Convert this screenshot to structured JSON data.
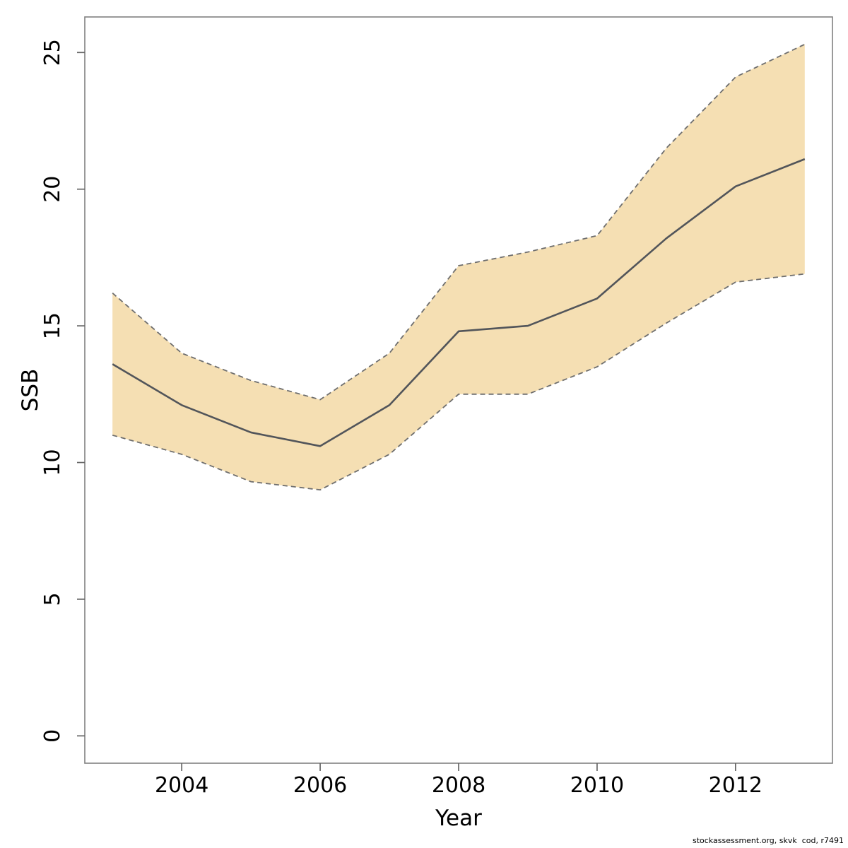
{
  "figure": {
    "background": "#ffffff",
    "footer_credit": "stockassessment.org, skvk  cod, r7491"
  },
  "chart_data": {
    "type": "area",
    "title": "",
    "xlabel": "Year",
    "ylabel": "SSB",
    "x": [
      2003,
      2004,
      2005,
      2006,
      2007,
      2008,
      2009,
      2010,
      2011,
      2012,
      2013
    ],
    "series": [
      {
        "name": "SSB estimate",
        "role": "mid",
        "values": [
          13.6,
          12.1,
          11.1,
          10.6,
          12.1,
          14.8,
          15.0,
          16.0,
          18.2,
          20.1,
          21.1
        ]
      },
      {
        "name": "upper 95% confidence bound",
        "role": "upper",
        "values": [
          16.2,
          14.0,
          13.0,
          12.3,
          14.0,
          17.2,
          17.7,
          18.3,
          21.5,
          24.1,
          25.3
        ]
      },
      {
        "name": "lower 95% confidence bound",
        "role": "lower",
        "values": [
          11.0,
          10.3,
          9.3,
          9.0,
          10.3,
          12.5,
          12.5,
          13.5,
          15.1,
          16.6,
          16.9
        ]
      }
    ],
    "x_ticks": [
      2004,
      2006,
      2008,
      2010,
      2012
    ],
    "y_ticks": [
      0,
      5,
      10,
      15,
      20,
      25
    ],
    "xlim": [
      2002.6,
      2013.4
    ],
    "ylim": [
      -1.0,
      26.3
    ],
    "grid": false,
    "legend": "none",
    "colors": {
      "band_fill": "#f5dfb3",
      "band_edge": "#6e6e6e",
      "mid_line": "#52555a",
      "frame": "#808080",
      "tick": "#666666",
      "text": "#000000"
    }
  }
}
